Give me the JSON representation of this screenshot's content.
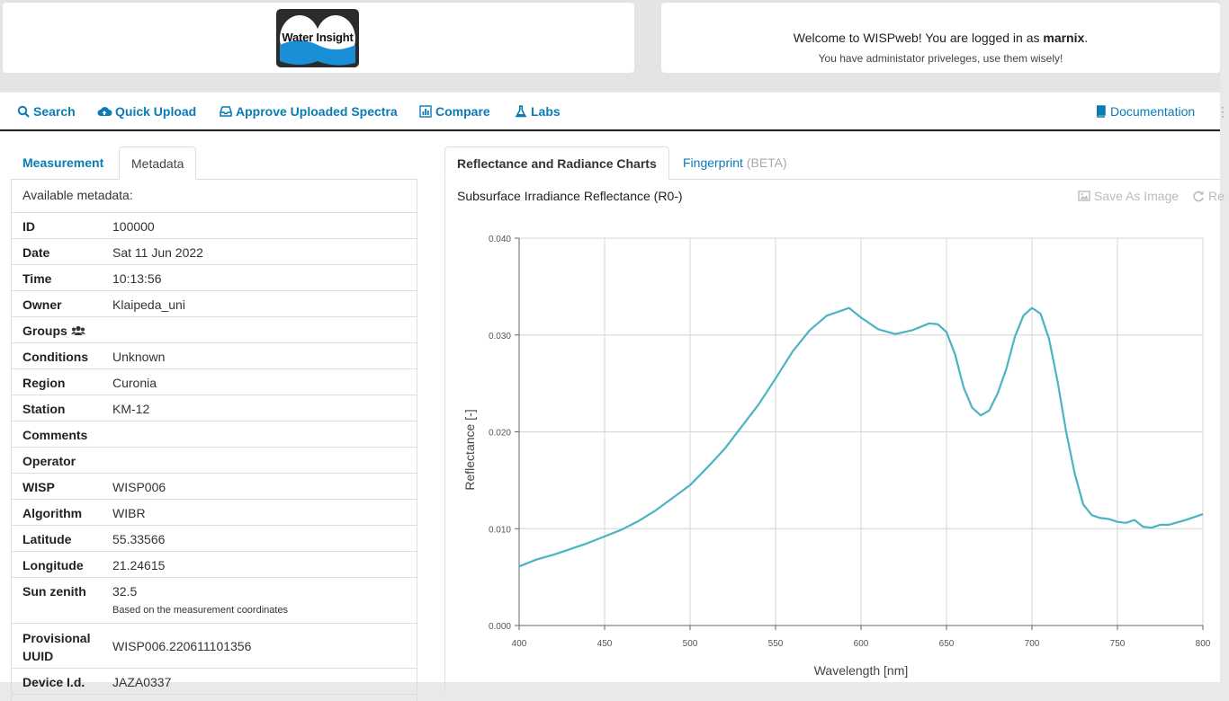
{
  "header": {
    "logo_text": "Water Insight",
    "welcome_prefix": "Welcome to WISPweb! You are logged in as ",
    "username": "marnix",
    "welcome_suffix": ".",
    "privileges": "You have administator priveleges, use them wisely!"
  },
  "nav": {
    "search": "Search",
    "quick_upload": "Quick Upload",
    "approve": "Approve Uploaded Spectra",
    "compare": "Compare",
    "labs": "Labs",
    "documentation": "Documentation"
  },
  "left_tabs": {
    "measurement": "Measurement",
    "metadata": "Metadata"
  },
  "right_tabs": {
    "charts": "Reflectance and Radiance Charts",
    "fingerprint": "Fingerprint",
    "beta": "(BETA)"
  },
  "metadata": {
    "heading": "Available metadata:",
    "rows": [
      {
        "key": "ID",
        "value": "100000"
      },
      {
        "key": "Date",
        "value": "Sat 11 Jun 2022"
      },
      {
        "key": "Time",
        "value": "10:13:56"
      },
      {
        "key": "Owner",
        "value": "Klaipeda_uni"
      },
      {
        "key": "Groups",
        "value": ""
      },
      {
        "key": "Conditions",
        "value": "Unknown"
      },
      {
        "key": "Region",
        "value": "Curonia"
      },
      {
        "key": "Station",
        "value": "KM-12"
      },
      {
        "key": "Comments",
        "value": ""
      },
      {
        "key": "Operator",
        "value": ""
      },
      {
        "key": "WISP",
        "value": "WISP006"
      },
      {
        "key": "Algorithm",
        "value": "WIBR"
      },
      {
        "key": "Latitude",
        "value": "55.33566"
      },
      {
        "key": "Longitude",
        "value": "21.24615"
      }
    ],
    "sun_zenith": {
      "key": "Sun zenith",
      "value": "32.5",
      "note": "Based on the measurement coordinates"
    },
    "uuid": {
      "key": "Provisional UUID",
      "value": "WISP006.220611101356"
    },
    "device": {
      "key": "Device I.d.",
      "value": "JAZA0337"
    }
  },
  "chart_panel": {
    "title": "Subsurface Irradiance Reflectance (R0-)",
    "save_label": "Save As Image",
    "reset_label": "Re"
  },
  "chart_data": {
    "type": "line",
    "xlabel": "Wavelength [nm]",
    "ylabel": "Reflectance [-]",
    "xlim": [
      400,
      800
    ],
    "ylim": [
      0.0,
      0.04
    ],
    "x_ticks": [
      "400",
      "450",
      "500",
      "550",
      "600",
      "650",
      "700",
      "750",
      "800"
    ],
    "y_ticks": [
      "0.000",
      "0.010",
      "0.020",
      "0.030",
      "0.040"
    ],
    "grid": true,
    "color": "#4bb3c1",
    "series": [
      {
        "x": [
          400,
          410,
          420,
          430,
          440,
          450,
          460,
          470,
          480,
          490,
          500,
          510,
          520,
          530,
          540,
          550,
          560,
          570,
          580,
          590,
          593,
          600,
          610,
          620,
          630,
          640,
          645,
          650,
          655,
          660,
          665,
          670,
          675,
          680,
          685,
          690,
          695,
          700,
          705,
          710,
          715,
          720,
          725,
          730,
          735,
          740,
          745,
          750,
          755,
          760,
          765,
          770,
          775,
          780,
          790,
          800
        ],
        "y": [
          0.0061,
          0.0068,
          0.0073,
          0.0079,
          0.0085,
          0.0092,
          0.0099,
          0.0108,
          0.0119,
          0.0132,
          0.0145,
          0.0163,
          0.0182,
          0.0205,
          0.0228,
          0.0255,
          0.0283,
          0.0305,
          0.032,
          0.0326,
          0.0328,
          0.0318,
          0.0306,
          0.0301,
          0.0305,
          0.0312,
          0.0311,
          0.0303,
          0.028,
          0.0246,
          0.0225,
          0.0217,
          0.0222,
          0.024,
          0.0265,
          0.0298,
          0.032,
          0.0328,
          0.0322,
          0.0296,
          0.0252,
          0.02,
          0.0157,
          0.0125,
          0.0114,
          0.0111,
          0.011,
          0.0107,
          0.0106,
          0.0109,
          0.0102,
          0.0101,
          0.0104,
          0.0104,
          0.0109,
          0.0115
        ]
      }
    ]
  },
  "colors": {
    "link": "#0a7bb5",
    "line": "#4bb3c1"
  }
}
